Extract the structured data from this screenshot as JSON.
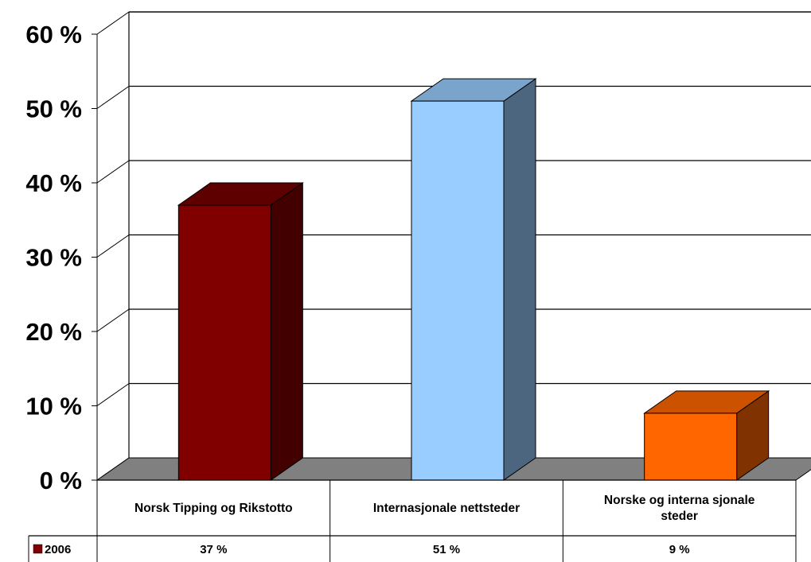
{
  "chart_data": {
    "type": "bar",
    "style": "3d-column",
    "categories": [
      [
        "Norsk Tipping og Rikstotto"
      ],
      [
        "Internasjonale nettsteder"
      ],
      [
        "Norske og interna sjonale",
        "steder"
      ]
    ],
    "series": [
      {
        "name": "2006",
        "values": [
          37,
          51,
          9
        ],
        "value_labels": [
          "37 %",
          "51 %",
          "9 %"
        ]
      }
    ],
    "bar_colors": [
      {
        "front": "#800000",
        "top": "#5e0000",
        "side": "#420000"
      },
      {
        "front": "#99ccff",
        "top": "#7aa4cc",
        "side": "#4c6680"
      },
      {
        "front": "#ff6600",
        "top": "#cc5200",
        "side": "#803300"
      }
    ],
    "floor_color": "#808080",
    "yticks": [
      "0 %",
      "10 %",
      "20 %",
      "30 %",
      "40 %",
      "50 %",
      "60 %"
    ],
    "ylim": [
      0,
      60
    ],
    "grid": true,
    "legend": "data-table",
    "title": "",
    "xlabel": "",
    "ylabel": ""
  }
}
